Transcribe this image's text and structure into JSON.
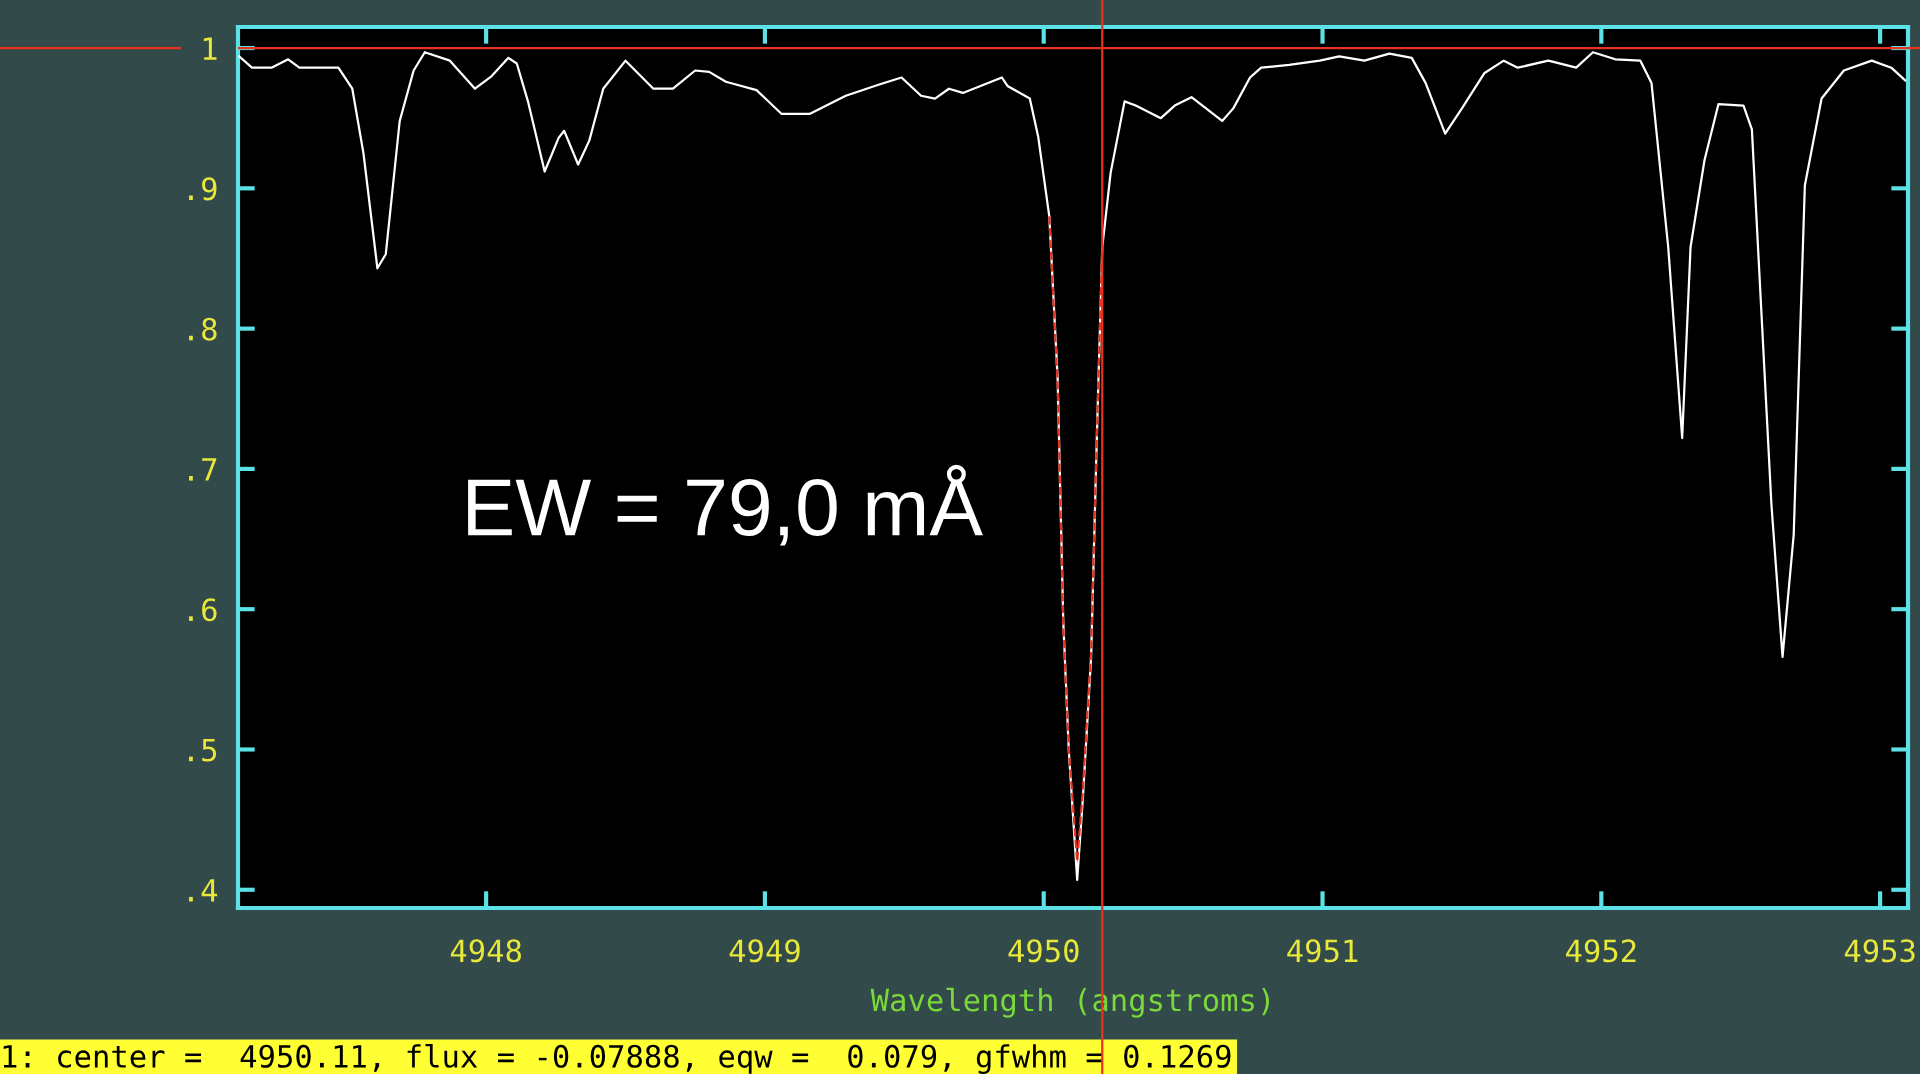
{
  "chart_data": {
    "type": "line",
    "xlabel": "Wavelength (angstroms)",
    "xlim": [
      4947.11,
      4953.1
    ],
    "xticks": [
      4948,
      4949,
      4950,
      4951,
      4952,
      4953
    ],
    "ylim": [
      0.387,
      1.015
    ],
    "yticks": [
      {
        "value": 0.4,
        "label": ".4"
      },
      {
        "value": 0.5,
        "label": ".5"
      },
      {
        "value": 0.6,
        "label": ".6"
      },
      {
        "value": 0.7,
        "label": ".7"
      },
      {
        "value": 0.8,
        "label": ".8"
      },
      {
        "value": 0.9,
        "label": ".9"
      },
      {
        "value": 1,
        "label": "1"
      }
    ],
    "grid": false,
    "legend": false,
    "marker": "none",
    "line_style": "solid",
    "series": [
      {
        "color": "#ffffff",
        "x": [
          4947.115,
          4947.16,
          4947.23,
          4947.29,
          4947.33,
          4947.47,
          4947.52,
          4947.56,
          4947.61,
          4947.64,
          4947.69,
          4947.74,
          4947.78,
          4947.87,
          4947.96,
          4948.02,
          4948.08,
          4948.11,
          4948.15,
          4948.21,
          4948.26,
          4948.28,
          4948.33,
          4948.37,
          4948.42,
          4948.5,
          4948.6,
          4948.67,
          4948.75,
          4948.8,
          4948.86,
          4948.97,
          4949.06,
          4949.16,
          4949.29,
          4949.41,
          4949.49,
          4949.56,
          4949.61,
          4949.66,
          4949.71,
          4949.85,
          4949.87,
          4949.95,
          4949.98,
          4950.02,
          4950.05,
          4950.07,
          4950.09,
          4950.12,
          4950.14,
          4950.17,
          4950.19,
          4950.21,
          4950.24,
          4950.29,
          4950.33,
          4950.42,
          4950.47,
          4950.53,
          4950.64,
          4950.68,
          4950.74,
          4950.78,
          4950.88,
          4950.99,
          4951.06,
          4951.15,
          4951.24,
          4951.32,
          4951.37,
          4951.44,
          4951.5,
          4951.58,
          4951.65,
          4951.7,
          4951.81,
          4951.91,
          4951.97,
          4952.05,
          4952.14,
          4952.18,
          4952.24,
          4952.29,
          4952.32,
          4952.37,
          4952.42,
          4952.51,
          4952.54,
          4952.61,
          4952.65,
          4952.69,
          4952.73,
          4952.79,
          4952.87,
          4952.97,
          4953.04,
          4953.09
        ],
        "values": [
          0.994,
          0.986,
          0.986,
          0.992,
          0.986,
          0.986,
          0.971,
          0.925,
          0.843,
          0.853,
          0.948,
          0.984,
          0.997,
          0.991,
          0.971,
          0.98,
          0.993,
          0.989,
          0.962,
          0.912,
          0.936,
          0.941,
          0.917,
          0.934,
          0.971,
          0.991,
          0.971,
          0.971,
          0.984,
          0.983,
          0.976,
          0.97,
          0.953,
          0.953,
          0.966,
          0.974,
          0.979,
          0.966,
          0.964,
          0.971,
          0.968,
          0.979,
          0.973,
          0.964,
          0.937,
          0.88,
          0.764,
          0.592,
          0.499,
          0.407,
          0.464,
          0.566,
          0.719,
          0.858,
          0.911,
          0.962,
          0.959,
          0.95,
          0.959,
          0.965,
          0.948,
          0.957,
          0.979,
          0.986,
          0.988,
          0.991,
          0.994,
          0.991,
          0.996,
          0.993,
          0.975,
          0.939,
          0.957,
          0.982,
          0.991,
          0.986,
          0.991,
          0.986,
          0.997,
          0.992,
          0.991,
          0.975,
          0.858,
          0.722,
          0.858,
          0.92,
          0.96,
          0.959,
          0.942,
          0.675,
          0.566,
          0.653,
          0.902,
          0.964,
          0.984,
          0.991,
          0.986,
          0.977
        ]
      },
      {
        "color": "#e8321e",
        "line_style": "dashed",
        "x": [
          4950.02,
          4950.05,
          4950.07,
          4950.09,
          4950.12,
          4950.14,
          4950.17,
          4950.19,
          4950.21
        ],
        "values": [
          0.88,
          0.76,
          0.59,
          0.5,
          0.42,
          0.47,
          0.57,
          0.72,
          0.86
        ]
      }
    ],
    "ref_lines": [
      {
        "axis": "y",
        "value": 1.0,
        "color": "#e8321e"
      },
      {
        "axis": "x",
        "value": 4950.21,
        "color": "#e8321e"
      }
    ],
    "annotations": [
      "EW = 79,0 mÅ",
      "1: center =  4950.11, flux = -0.07888, eqw =  0.079, gfwhm = 0.1269"
    ]
  }
}
